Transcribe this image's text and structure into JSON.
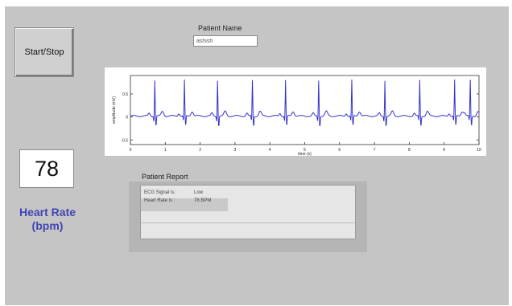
{
  "controls": {
    "start_stop_label": "Start/Stop"
  },
  "heart_rate": {
    "value": "78",
    "label_line1": "Heart Rate",
    "label_line2": "(bpm)"
  },
  "patient": {
    "name_label": "Patient Name",
    "name_value": "ashish"
  },
  "plot": {
    "y_label": "amplitude (mV)",
    "x_label": "time (s)",
    "y_ticks": [
      "0.5",
      "0",
      "-0.5"
    ],
    "x_ticks": [
      "0",
      "1",
      "2",
      "3",
      "4",
      "5",
      "6",
      "7",
      "8",
      "9",
      "10"
    ],
    "y_lim": [
      -0.6,
      0.9
    ],
    "x_lim": [
      0,
      10
    ],
    "beat_times": [
      0.7,
      1.55,
      2.5,
      3.5,
      4.45,
      5.4,
      6.35,
      7.3,
      8.3,
      9.3,
      9.75
    ],
    "line_color": "#3333cc"
  },
  "report": {
    "label": "Patient Report",
    "lines": [
      {
        "key": "ECG Signal is :",
        "value": "Low"
      },
      {
        "key": "Heart Rate is :",
        "value": "78  BPM"
      }
    ]
  }
}
